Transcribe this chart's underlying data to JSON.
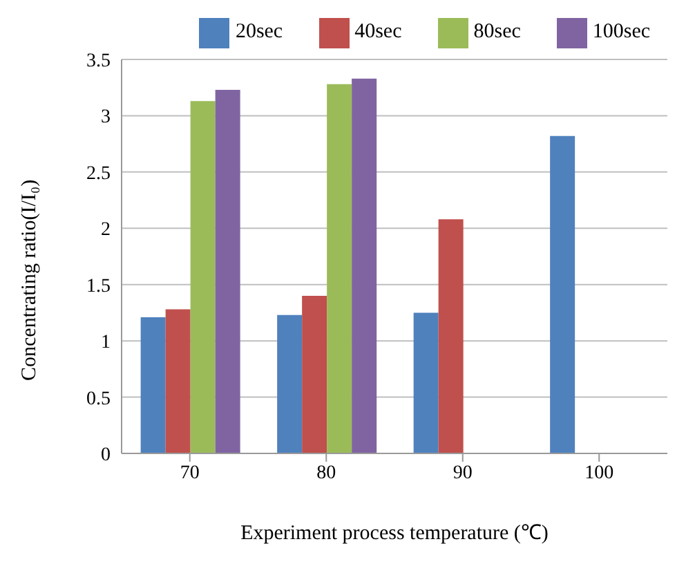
{
  "chart_data": {
    "type": "bar",
    "xlabel": "Experiment process temperature (℃)",
    "ylabel": "Concentrating ratio(I/I₀)",
    "categories": [
      "70",
      "80",
      "90",
      "100"
    ],
    "series": [
      {
        "name": "20sec",
        "color": "#4f81bd",
        "values": [
          1.21,
          1.23,
          1.25,
          2.82
        ]
      },
      {
        "name": "40sec",
        "color": "#c0504d",
        "values": [
          1.28,
          1.4,
          2.08,
          null
        ]
      },
      {
        "name": "80sec",
        "color": "#9bbb59",
        "values": [
          3.13,
          3.28,
          null,
          null
        ]
      },
      {
        "name": "100sec",
        "color": "#8064a2",
        "values": [
          3.23,
          3.33,
          null,
          null
        ]
      }
    ],
    "ylim": [
      0,
      3.5
    ],
    "yticks": [
      0,
      0.5,
      1,
      1.5,
      2,
      2.5,
      3,
      3.5
    ],
    "grid": "y",
    "legend": "top"
  }
}
